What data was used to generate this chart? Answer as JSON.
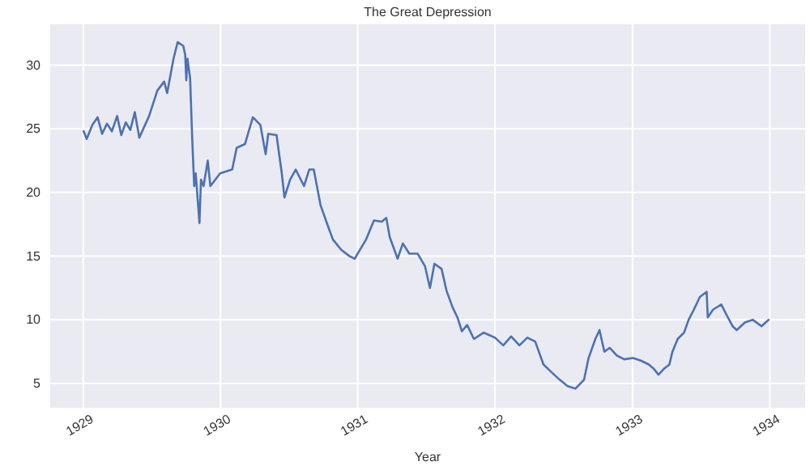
{
  "chart_data": {
    "type": "line",
    "title": "The Great Depression",
    "xlabel": "Year",
    "x": [
      "1929-01-02",
      "1929-01-10",
      "1929-01-25",
      "1929-02-08",
      "1929-02-20",
      "1929-03-05",
      "1929-03-18",
      "1929-04-01",
      "1929-04-12",
      "1929-04-24",
      "1929-05-06",
      "1929-05-18",
      "1929-05-30",
      "1929-06-25",
      "1929-07-17",
      "1929-08-04",
      "1929-08-12",
      "1929-08-29",
      "1929-09-09",
      "1929-09-24",
      "1929-09-29",
      "1929-10-02",
      "1929-10-05",
      "1929-10-12",
      "1929-10-18",
      "1929-10-23",
      "1929-10-27",
      "1929-11-06",
      "1929-11-10",
      "1929-11-17",
      "1929-11-28",
      "1929-12-05",
      "1929-12-31",
      "1930-02-01",
      "1930-02-13",
      "1930-03-07",
      "1930-03-28",
      "1930-04-17",
      "1930-05-01",
      "1930-05-08",
      "1930-05-30",
      "1930-06-13",
      "1930-06-20",
      "1930-07-05",
      "1930-07-20",
      "1930-08-11",
      "1930-08-25",
      "1930-09-06",
      "1930-09-24",
      "1930-10-12",
      "1930-10-27",
      "1930-11-18",
      "1930-12-10",
      "1930-12-24",
      "1931-01-01",
      "1931-01-23",
      "1931-02-13",
      "1931-03-06",
      "1931-03-18",
      "1931-03-27",
      "1931-04-17",
      "1931-05-01",
      "1931-05-18",
      "1931-06-09",
      "1931-06-29",
      "1931-07-12",
      "1931-07-24",
      "1931-08-12",
      "1931-08-25",
      "1931-09-10",
      "1931-09-23",
      "1931-10-05",
      "1931-10-19",
      "1931-11-06",
      "1931-12-02",
      "1931-12-17",
      "1932-01-01",
      "1932-01-23",
      "1932-02-13",
      "1932-03-06",
      "1932-03-27",
      "1932-04-17",
      "1932-05-09",
      "1932-05-30",
      "1932-06-21",
      "1932-07-12",
      "1932-08-02",
      "1932-08-25",
      "1932-09-06",
      "1932-09-24",
      "1932-10-05",
      "1932-10-18",
      "1932-11-01",
      "1932-11-20",
      "1932-12-10",
      "1933-01-02",
      "1933-01-23",
      "1933-02-13",
      "1933-02-25",
      "1933-03-11",
      "1933-03-27",
      "1933-04-09",
      "1933-04-17",
      "1933-05-01",
      "1933-05-18",
      "1933-05-30",
      "1933-06-13",
      "1933-06-29",
      "1933-07-17",
      "1933-07-20",
      "1933-08-03",
      "1933-08-25",
      "1933-09-06",
      "1933-09-24",
      "1933-10-05",
      "1933-10-27",
      "1933-11-17",
      "1933-12-10",
      "1933-12-29"
    ],
    "series": [
      {
        "color": "#4c72b0",
        "values": [
          24.8,
          24.2,
          25.3,
          25.9,
          24.6,
          25.4,
          24.8,
          26,
          24.5,
          25.5,
          24.9,
          26.3,
          24.3,
          26,
          28,
          28.7,
          27.8,
          30.5,
          31.8,
          31.5,
          30.8,
          28.8,
          30.5,
          29,
          24,
          20.5,
          21.5,
          17.6,
          21,
          20.5,
          22.5,
          20.5,
          21.5,
          21.8,
          23.5,
          23.8,
          25.9,
          25.3,
          23,
          24.6,
          24.5,
          21.5,
          19.6,
          21,
          21.8,
          20.5,
          21.8,
          21.8,
          19,
          17.5,
          16.3,
          15.5,
          15,
          14.8,
          15.2,
          16.3,
          17.8,
          17.7,
          18,
          16.5,
          14.8,
          16,
          15.2,
          15.2,
          14.2,
          12.5,
          14.4,
          14,
          12.3,
          11,
          10.2,
          9.1,
          9.6,
          8.5,
          9,
          8.8,
          8.6,
          8,
          8.7,
          8,
          8.6,
          8.3,
          6.5,
          5.9,
          5.3,
          4.8,
          4.6,
          5.3,
          7,
          8.5,
          9.2,
          7.5,
          7.8,
          7.2,
          6.9,
          7,
          6.8,
          6.5,
          6.2,
          5.7,
          6.2,
          6.5,
          7.5,
          8.5,
          9,
          10,
          10.8,
          11.8,
          12.2,
          10.2,
          10.8,
          11.2,
          10.5,
          9.5,
          9.2,
          9.8,
          10,
          9.5,
          10
        ]
      }
    ],
    "xlim": [
      "1928-10-05",
      "1934-04-05"
    ],
    "xticks": [
      {
        "value": "1929-01-01",
        "label": "1929"
      },
      {
        "value": "1930-01-01",
        "label": "1930"
      },
      {
        "value": "1931-01-01",
        "label": "1931"
      },
      {
        "value": "1932-01-01",
        "label": "1932"
      },
      {
        "value": "1933-01-01",
        "label": "1933"
      },
      {
        "value": "1934-01-01",
        "label": "1934"
      }
    ],
    "ylim": [
      3.1,
      33.2
    ],
    "yticks": [
      5,
      10,
      15,
      20,
      25,
      30
    ],
    "grid": true,
    "line_style": "solid",
    "marker": "none"
  }
}
